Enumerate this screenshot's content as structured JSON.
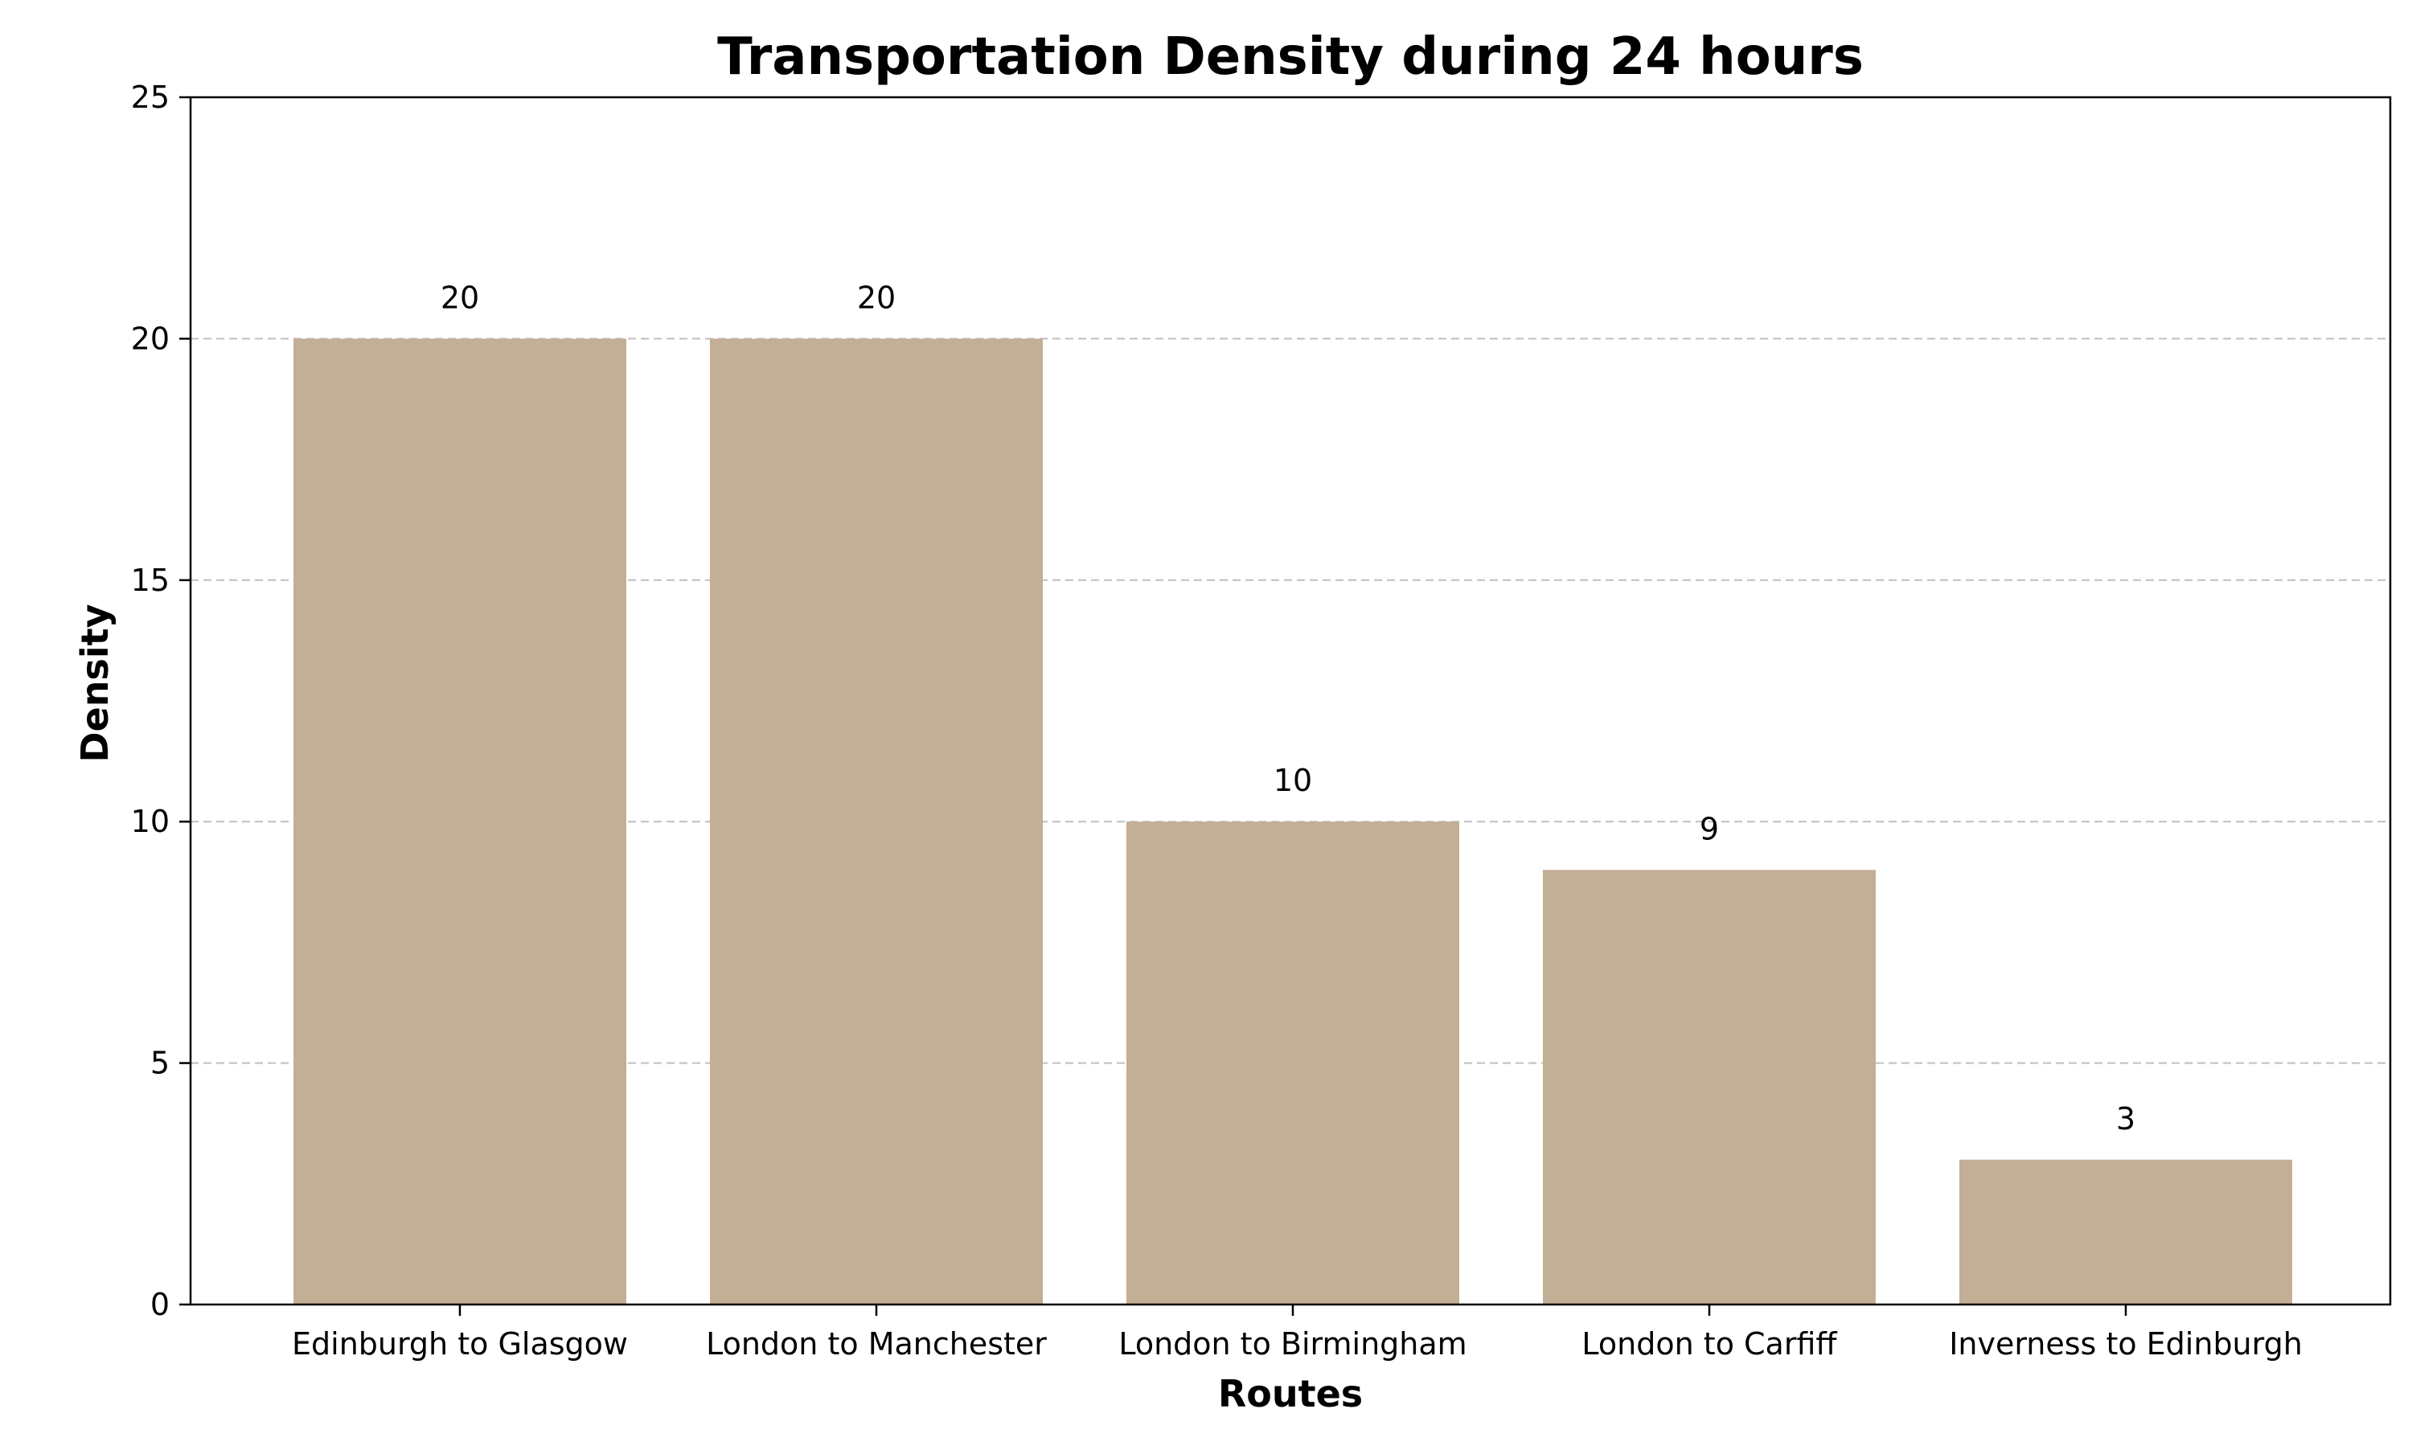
{
  "chart_data": {
    "type": "bar",
    "title": "Transportation Density during 24 hours",
    "xlabel": "Routes",
    "ylabel": "Density",
    "categories": [
      "Edinburgh to Glasgow",
      "London to Manchester",
      "London to Birmingham",
      "London to Carfiff",
      "Inverness to Edinburgh"
    ],
    "values": [
      20,
      20,
      10,
      9,
      3
    ],
    "data_labels": [
      "20",
      "20",
      "10",
      "9",
      "3"
    ],
    "ylim": [
      0,
      25
    ],
    "yticks": [
      0,
      5,
      10,
      15,
      20,
      25
    ],
    "ytick_labels": [
      "0",
      "5",
      "10",
      "15",
      "20",
      "25"
    ],
    "grid": {
      "axis": "y",
      "style": "dashed"
    },
    "bar_color": "#c3ae96",
    "grid_color": "#bfbfbf"
  }
}
